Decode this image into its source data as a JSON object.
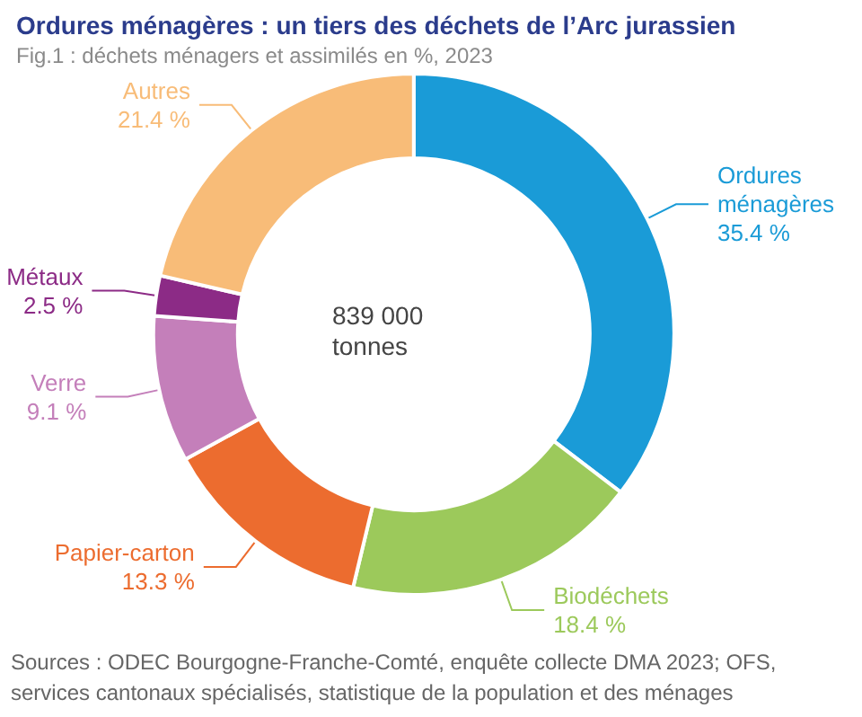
{
  "chart_data": {
    "type": "donut",
    "title": "Ordures ménagères : un tiers des déchets de l’Arc jurassien",
    "subtitle": "Fig.1 : déchets ménagers et assimilés en %, 2023",
    "categories": [
      "Ordures ménagères",
      "Biodéchets",
      "Papier-carton",
      "Verre",
      "Métaux",
      "Autres"
    ],
    "values": [
      35.4,
      18.4,
      13.3,
      9.1,
      2.5,
      21.4
    ],
    "value_labels": [
      "35.4 %",
      "18.4 %",
      "13.3 %",
      "9.1 %",
      "2.5 %",
      "21.4 %"
    ],
    "colors": [
      "#1a9bd7",
      "#9cc95b",
      "#ec6c2f",
      "#c47fba",
      "#8c2b86",
      "#f8bc78"
    ],
    "annotations": [
      "839 000 tonnes",
      "Sources : ODEC Bourgogne-Franche-Comté, enquête collecte DMA 2023; OFS, services cantonaux spécialisés, statistique de la population et des ménages"
    ],
    "legend": false
  }
}
